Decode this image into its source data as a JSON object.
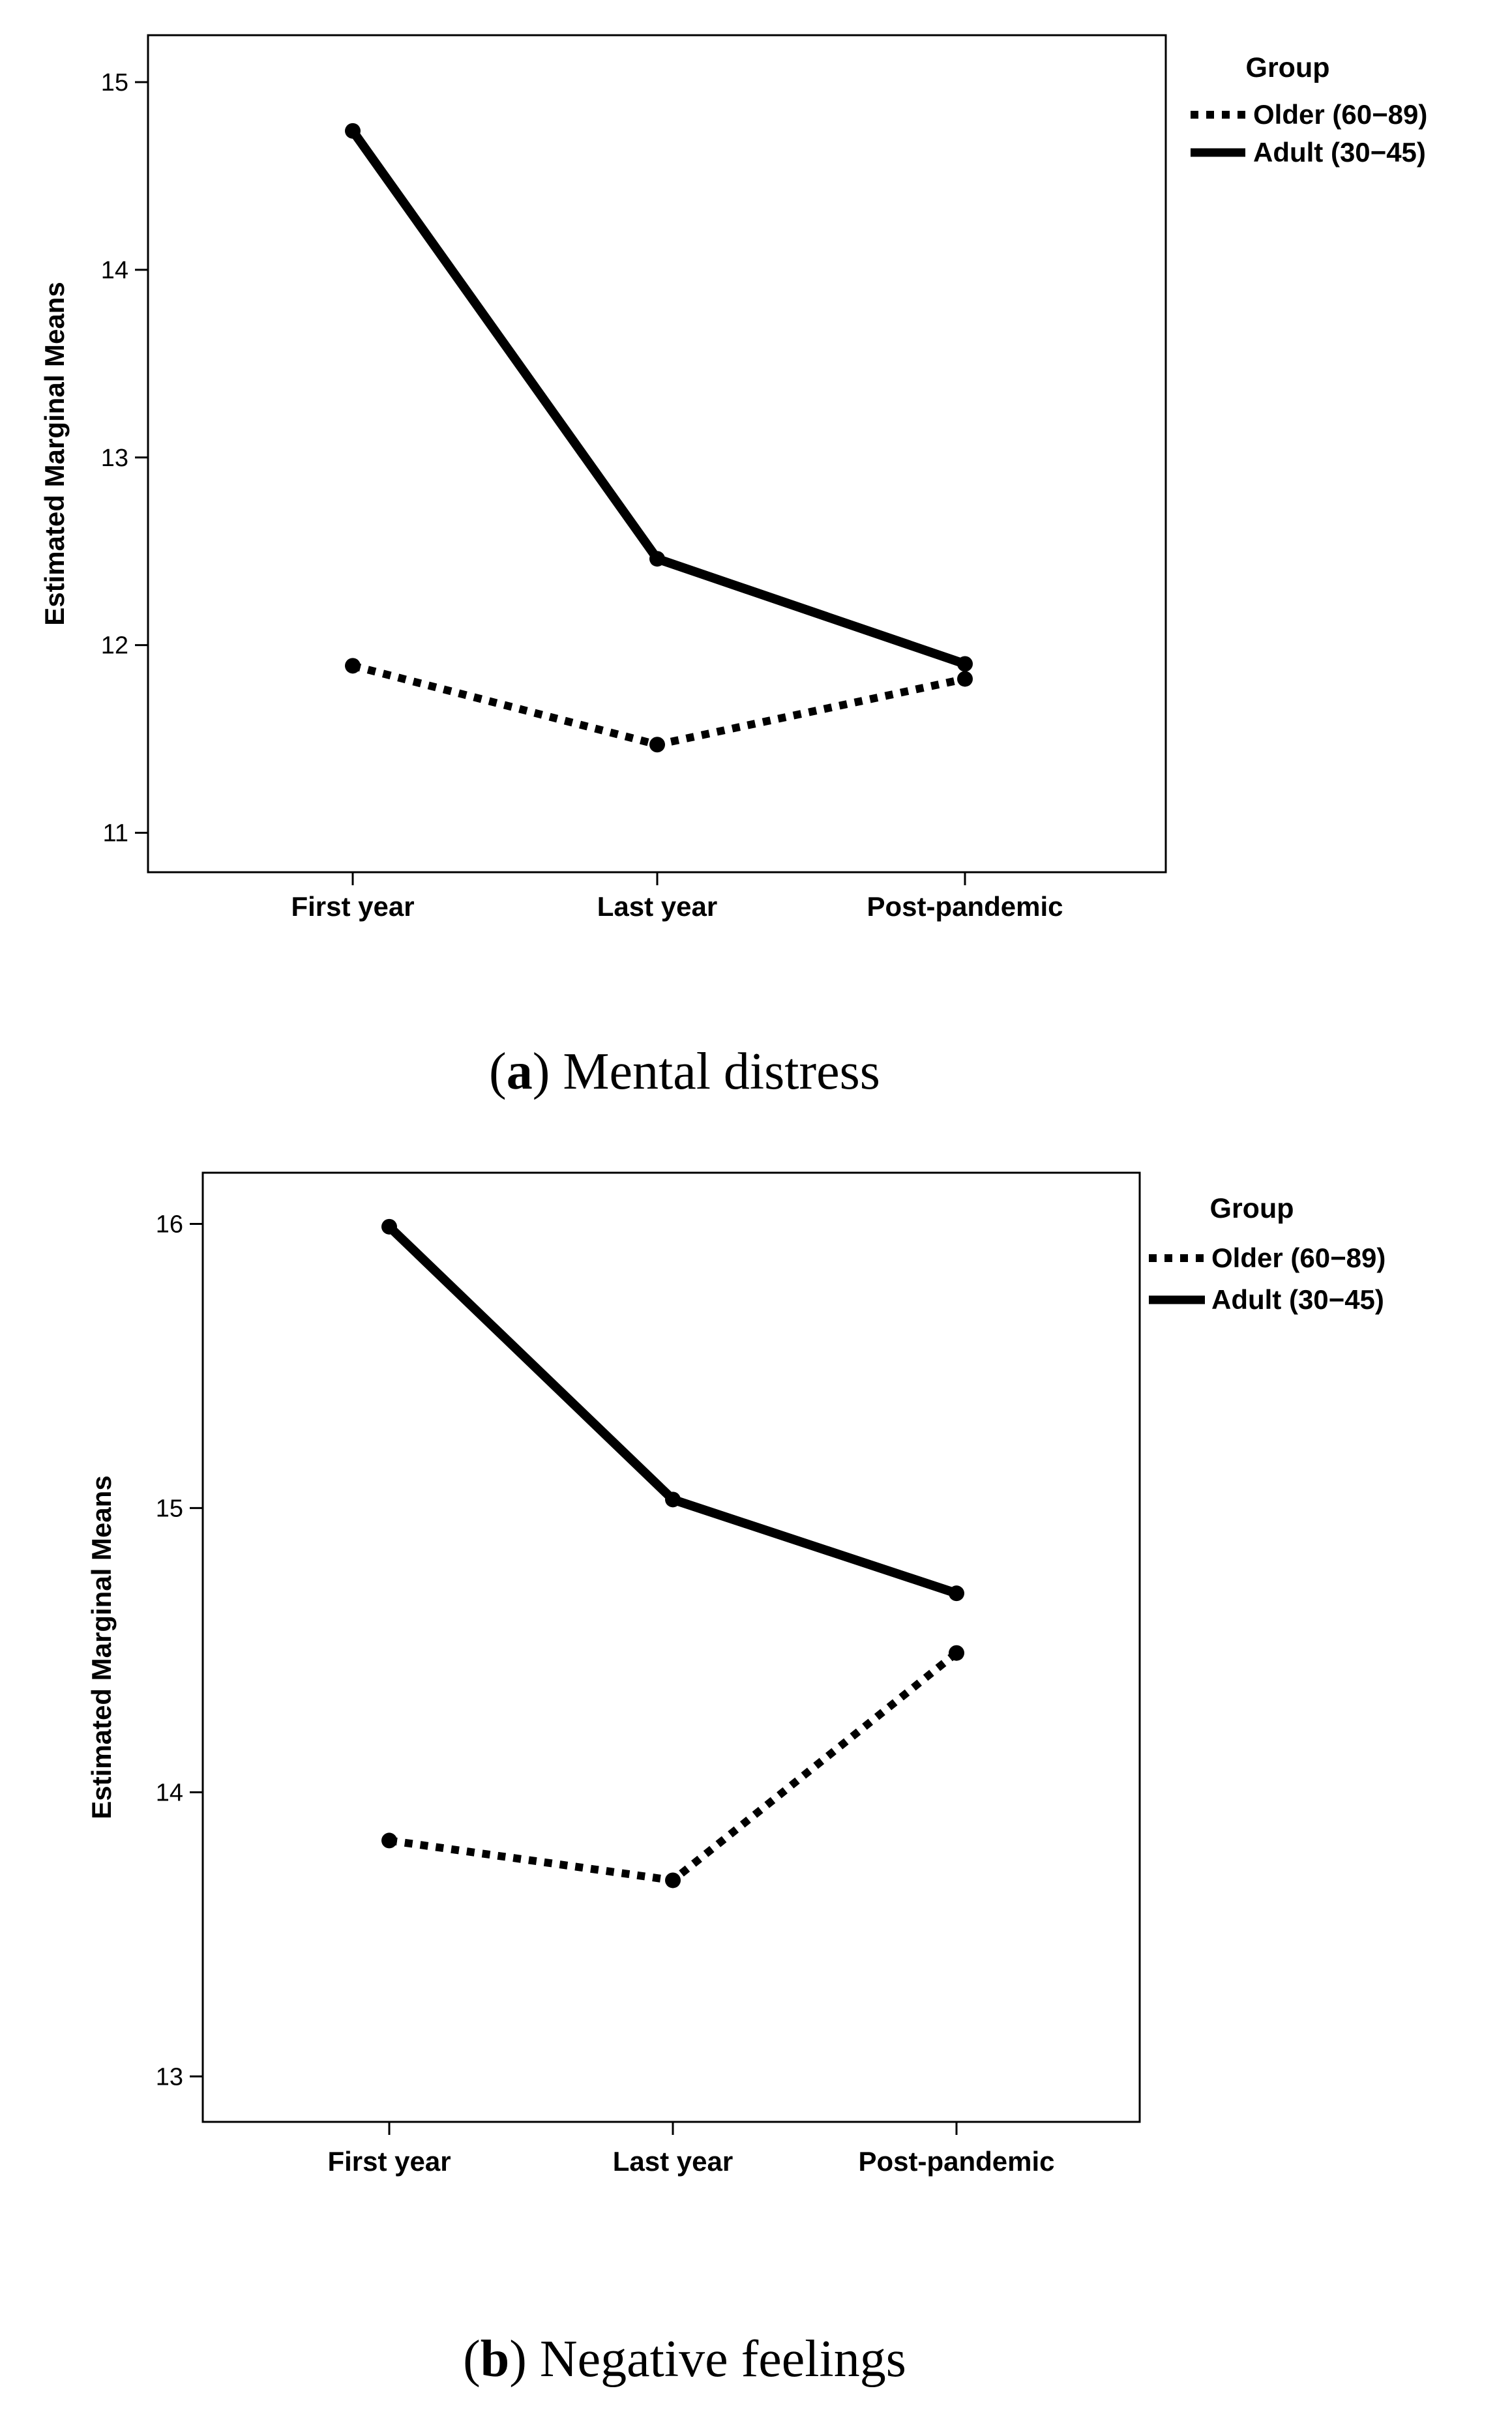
{
  "chart_data": [
    {
      "type": "line",
      "title": "",
      "xlabel": "",
      "ylabel": "Estimated Marginal Means",
      "ylim": [
        10.79,
        15.25
      ],
      "yticks": [
        "11",
        "12",
        "13",
        "14",
        "15"
      ],
      "categories": [
        "First year",
        "Last year",
        "Post-pandemic"
      ],
      "legend_title": "Group",
      "legend_position": "right",
      "series": [
        {
          "name": "Older (60−89)",
          "style": "dotted",
          "values": [
            11.89,
            11.47,
            11.82
          ]
        },
        {
          "name": "Adult (30−45)",
          "style": "solid",
          "values": [
            14.74,
            12.46,
            11.9
          ]
        }
      ],
      "caption_letter": "a",
      "caption_text": "Mental distress"
    },
    {
      "type": "line",
      "title": "",
      "xlabel": "",
      "ylabel": "Estimated Marginal Means",
      "ylim": [
        12.84,
        16.18
      ],
      "yticks": [
        "13",
        "14",
        "15",
        "16"
      ],
      "categories": [
        "First year",
        "Last year",
        "Post-pandemic"
      ],
      "legend_title": "Group",
      "legend_position": "right",
      "series": [
        {
          "name": "Older (60−89)",
          "style": "dotted",
          "values": [
            13.83,
            13.69,
            14.49
          ]
        },
        {
          "name": "Adult (30−45)",
          "style": "solid",
          "values": [
            15.99,
            15.03,
            14.7
          ]
        }
      ],
      "caption_letter": "b",
      "caption_text": "Negative feelings"
    }
  ],
  "colors": {
    "line": "#000000",
    "background": "#ffffff"
  }
}
